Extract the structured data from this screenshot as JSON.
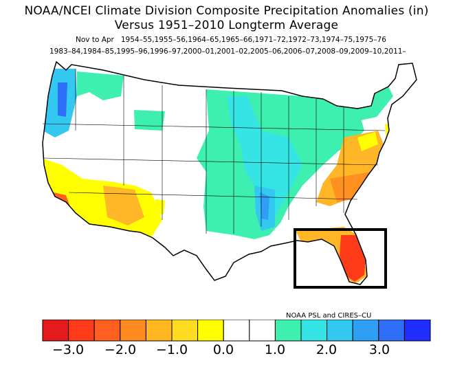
{
  "title": {
    "line1": "NOAA/NCEI Climate Division Composite Precipitation Anomalies (in)",
    "line2": "Versus 1951–2010 Longterm Average"
  },
  "period": "Nov to Apr",
  "years_line1": "1954–55,1955–56,1964–65,1965–66,1971–72,1972–73,1974–75,1975–76",
  "years_line2": "1983–84,1984–85,1995–96,1996–97,2000–01,2001–02,2005–06,2006–07,2008–09,2009–10,2011–",
  "credit": "NOAA PSL and CIRES–CU",
  "colorbar": {
    "colors": [
      "#e41a1c",
      "#ff3b1a",
      "#ff5f1f",
      "#ff8a1f",
      "#ffb61f",
      "#ffdc1f",
      "#ffff00",
      "#ffffff",
      "#ffffff",
      "#3ef0b0",
      "#35e4e4",
      "#33c8f0",
      "#2f9ef5",
      "#2f6ff7",
      "#1f2dff"
    ],
    "ticks": [
      "−3.0",
      "−2.0",
      "−1.0",
      "0.0",
      "1.0",
      "2.0",
      "3.0"
    ]
  },
  "highlight": "florida-box",
  "colors": {
    "dry_strong": "#ff2a1a",
    "dry": "#ff8f1f",
    "dry_mild": "#ffb627",
    "dry_light": "#ffff00",
    "neutral": "#ffffff",
    "wet_light": "#3ef0b0",
    "wet": "#33c8f0",
    "wet_strong": "#2f6ff7"
  }
}
